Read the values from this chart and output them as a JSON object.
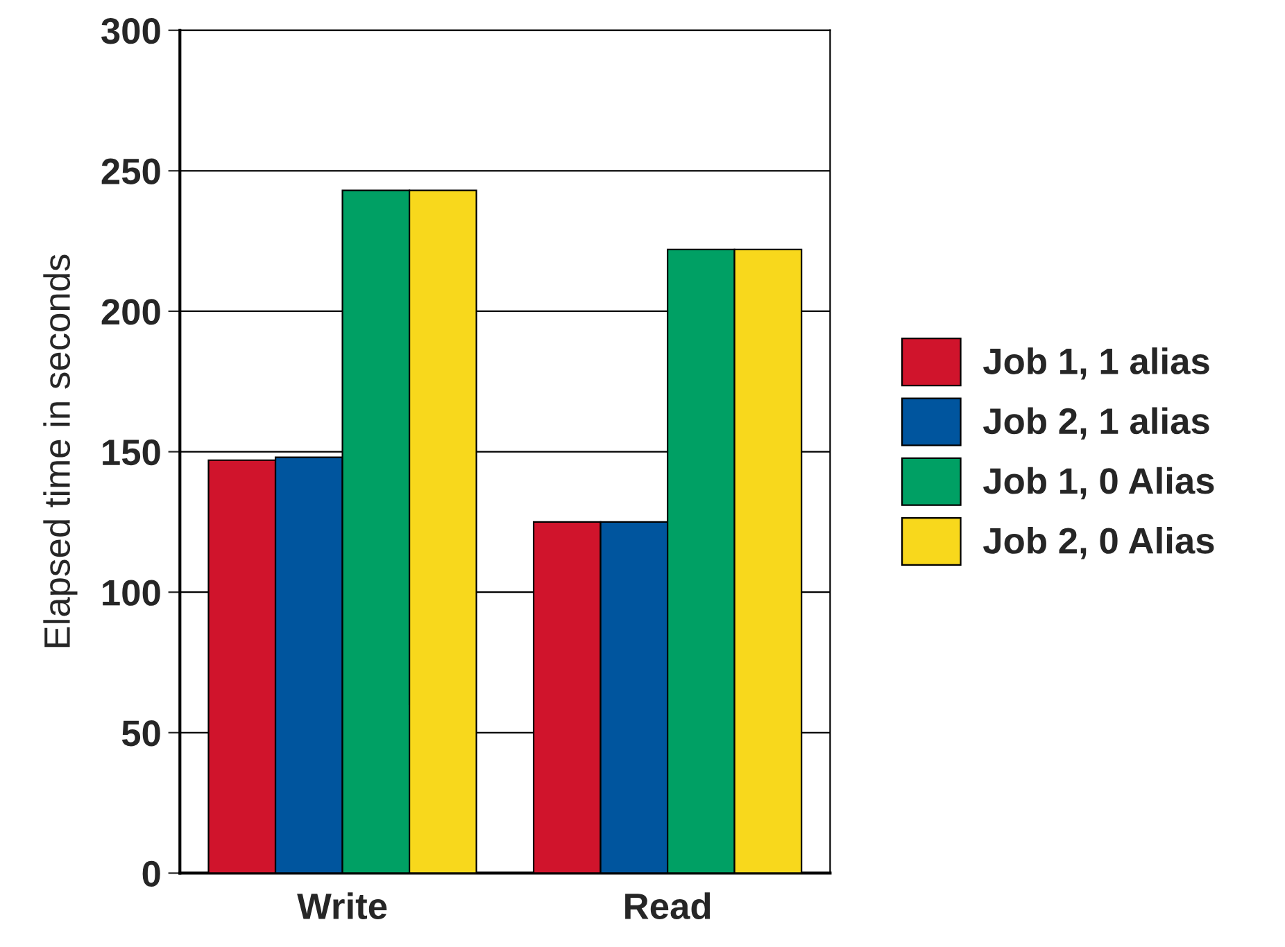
{
  "chart_data": {
    "type": "bar",
    "ylabel": "Elapsed time in seconds",
    "categories": [
      "Write",
      "Read"
    ],
    "series": [
      {
        "name": "Job 1, 1 alias",
        "color": "#d0142c",
        "values": [
          147,
          125
        ]
      },
      {
        "name": "Job 2, 1 alias",
        "color": "#00559e",
        "values": [
          148,
          125
        ]
      },
      {
        "name": "Job 1, 0 Alias",
        "color": "#00a064",
        "values": [
          243,
          222
        ]
      },
      {
        "name": "Job 2, 0 Alias",
        "color": "#f8d81c",
        "values": [
          243,
          222
        ]
      }
    ],
    "ylim": [
      0,
      300
    ],
    "yticks": [
      0,
      50,
      100,
      150,
      200,
      250,
      300
    ],
    "grid": "y",
    "legend": "right"
  }
}
